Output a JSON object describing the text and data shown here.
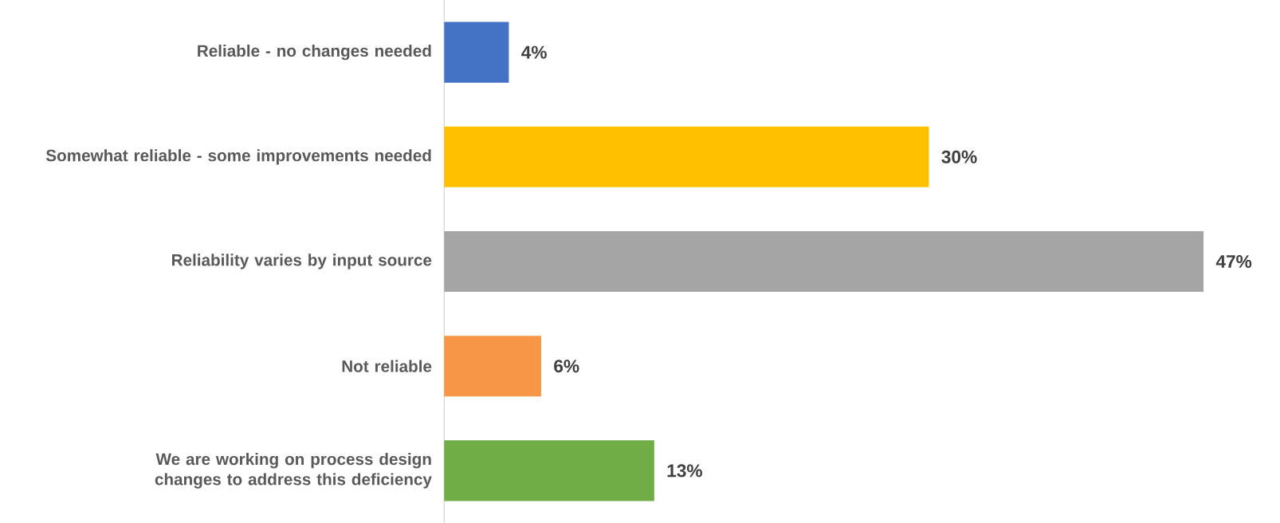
{
  "chart_data": {
    "type": "bar",
    "orientation": "horizontal",
    "categories": [
      "Reliable - no changes needed",
      "Somewhat reliable - some improvements needed",
      "Reliability varies by input source",
      "Not reliable",
      "We are working on process design changes to address this deficiency"
    ],
    "values": [
      4,
      30,
      47,
      6,
      13
    ],
    "colors": [
      "#4472c4",
      "#ffc000",
      "#a5a5a5",
      "#f79646",
      "#70ad47"
    ],
    "value_labels": [
      "4%",
      "30%",
      "47%",
      "6%",
      "13%"
    ]
  }
}
